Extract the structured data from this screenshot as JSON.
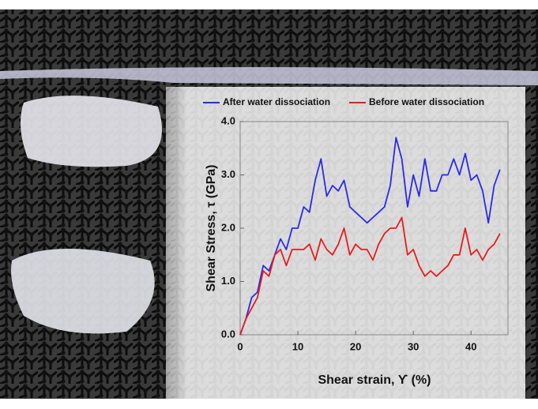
{
  "chart_data": {
    "type": "line",
    "y_label": "Shear Stress, τ (GPa)",
    "x_label": "Shear strain, ϒ (%)",
    "x": [
      0,
      1,
      2,
      3,
      4,
      5,
      6,
      7,
      8,
      9,
      10,
      11,
      12,
      13,
      14,
      15,
      16,
      17,
      18,
      19,
      20,
      21,
      22,
      23,
      24,
      25,
      26,
      27,
      28,
      29,
      30,
      31,
      32,
      33,
      34,
      35,
      36,
      37,
      38,
      39,
      40,
      41,
      42,
      43,
      44,
      45
    ],
    "series": [
      {
        "name": "After water dissociation",
        "color": "#2a2ae6",
        "values": [
          0,
          0.3,
          0.7,
          0.8,
          1.3,
          1.2,
          1.5,
          1.8,
          1.6,
          2.0,
          2.0,
          2.4,
          2.3,
          2.9,
          3.3,
          2.6,
          2.8,
          2.7,
          2.9,
          2.4,
          2.3,
          2.2,
          2.1,
          2.2,
          2.3,
          2.4,
          2.8,
          3.7,
          3.3,
          2.4,
          3.0,
          2.6,
          3.3,
          2.7,
          2.7,
          3.0,
          3.0,
          3.3,
          3.0,
          3.4,
          2.9,
          3.0,
          2.7,
          2.1,
          2.8,
          3.1
        ]
      },
      {
        "name": "Before water dissociation",
        "color": "#e61c1c",
        "values": [
          0,
          0.3,
          0.5,
          0.7,
          1.2,
          1.1,
          1.5,
          1.6,
          1.3,
          1.6,
          1.6,
          1.6,
          1.7,
          1.4,
          1.8,
          1.6,
          1.5,
          1.7,
          2.0,
          1.5,
          1.7,
          1.6,
          1.6,
          1.4,
          1.7,
          1.9,
          2.0,
          2.0,
          2.2,
          1.5,
          1.6,
          1.3,
          1.1,
          1.2,
          1.1,
          1.2,
          1.3,
          1.5,
          1.5,
          2.0,
          1.5,
          1.6,
          1.4,
          1.6,
          1.7,
          1.9
        ]
      }
    ],
    "xlim": [
      0,
      46.4
    ],
    "xticks": [
      0,
      10,
      20,
      30,
      40
    ],
    "ylim": [
      0,
      4
    ],
    "yticks": [
      {
        "value": 0,
        "label": "0.0"
      },
      {
        "value": 1,
        "label": "1.0"
      },
      {
        "value": 2,
        "label": "2.0"
      },
      {
        "value": 3,
        "label": "3.0"
      },
      {
        "value": 4,
        "label": "4.0"
      }
    ],
    "grid": false,
    "legend": "top"
  }
}
